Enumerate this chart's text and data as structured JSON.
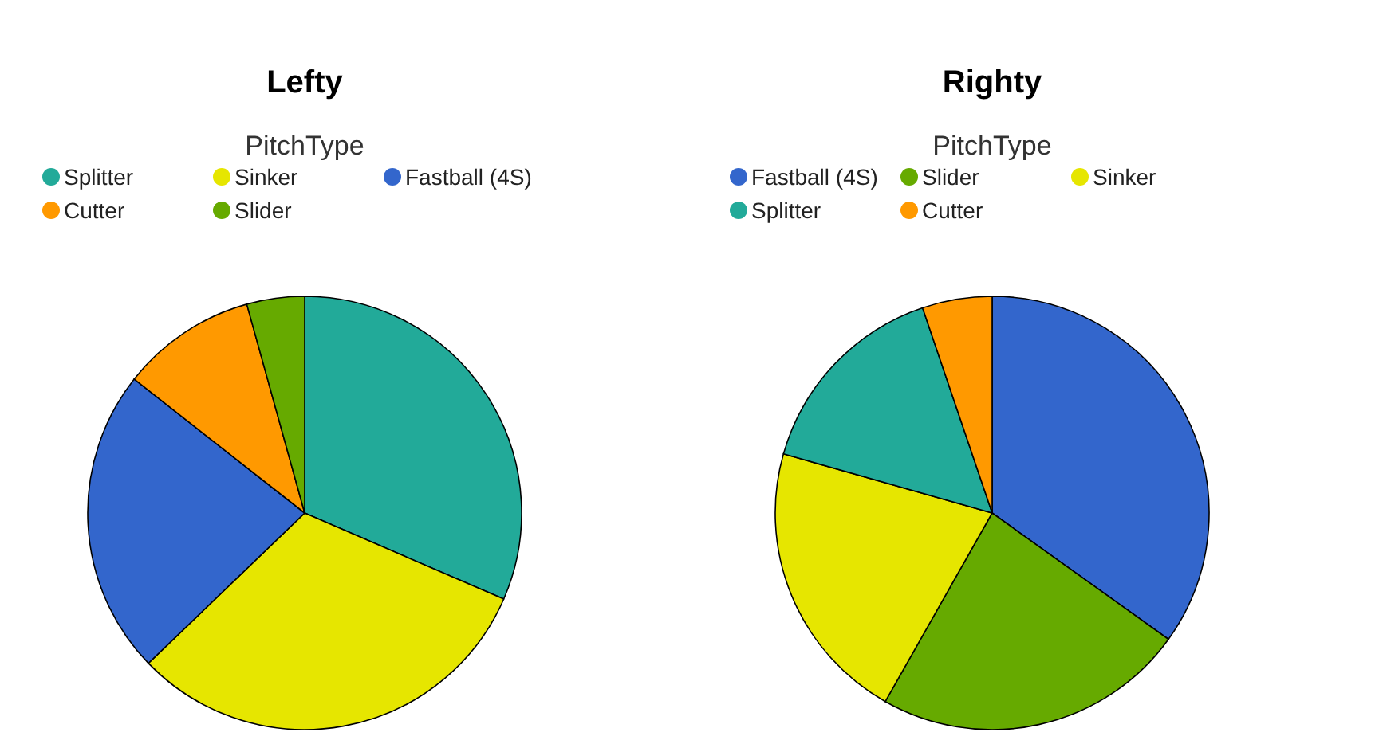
{
  "chart_data": [
    {
      "type": "pie",
      "title": "Lefty",
      "legend_title": "PitchType",
      "legend": "top",
      "categories": [
        "Splitter",
        "Sinker",
        "Fastball (4S)",
        "Cutter",
        "Slider"
      ],
      "values": [
        31.5,
        31.3,
        22.8,
        10.1,
        4.3
      ],
      "colors": [
        "#22aa99",
        "#e6e600",
        "#3366cc",
        "#ff9900",
        "#66aa00"
      ]
    },
    {
      "type": "pie",
      "title": "Righty",
      "legend_title": "PitchType",
      "legend": "top",
      "categories": [
        "Fastball (4S)",
        "Slider",
        "Sinker",
        "Splitter",
        "Cutter"
      ],
      "values": [
        34.9,
        23.3,
        21.2,
        15.4,
        5.2
      ],
      "colors": [
        "#3366cc",
        "#66aa00",
        "#e6e600",
        "#22aa99",
        "#ff9900"
      ]
    }
  ]
}
